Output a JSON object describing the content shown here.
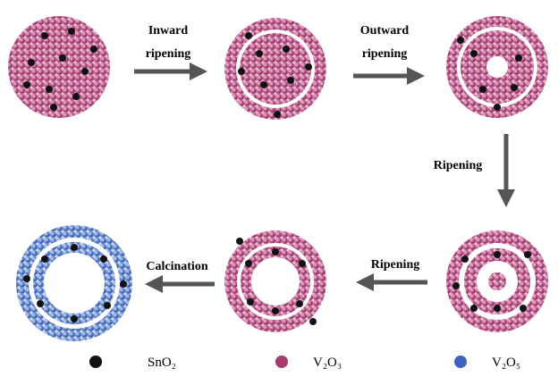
{
  "steps": [
    {
      "label": [
        "Inward",
        "ripening"
      ]
    },
    {
      "label": [
        "Outward",
        "ripening"
      ]
    },
    {
      "label": [
        "Ripening"
      ]
    },
    {
      "label": [
        "Ripening"
      ]
    },
    {
      "label": [
        "Calcination"
      ]
    }
  ],
  "legend": [
    {
      "label": "SnO₂"
    },
    {
      "label": "V₂O₃"
    },
    {
      "label": "V₂O₅"
    }
  ]
}
